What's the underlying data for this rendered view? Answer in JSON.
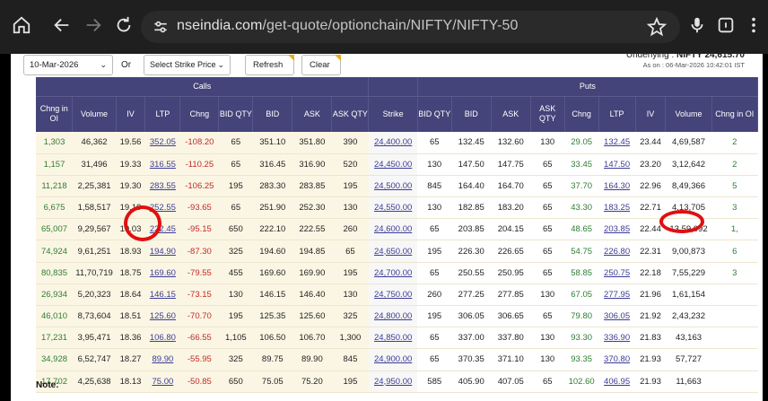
{
  "browser": {
    "url_host": "nseindia.com",
    "url_path": "/get-quote/optionchain/NIFTY/NIFTY-50"
  },
  "controls": {
    "expiry": "10-Mar-2026",
    "or_label": "Or",
    "strike_placeholder": "Select Strike Price",
    "refresh": "Refresh",
    "clear": "Clear"
  },
  "underlying": {
    "label": "Underlying : ",
    "value": "NIFTY 24,615.70",
    "as_on": "As on : 06-Mar-2026 10:42:01 IST"
  },
  "table": {
    "calls_label": "Calls",
    "puts_label": "Puts",
    "headers": [
      "Chng in OI",
      "Volume",
      "IV",
      "LTP",
      "Chng",
      "BID QTY",
      "BID",
      "ASK",
      "ASK QTY",
      "Strike",
      "BID QTY",
      "BID",
      "ASK",
      "ASK QTY",
      "Chng",
      "LTP",
      "IV",
      "Volume",
      "Chng in OI"
    ],
    "rows": [
      {
        "c_oi": "1,303",
        "c_vol": "46,362",
        "c_iv": "19.56",
        "c_ltp": "352.05",
        "c_chg": "-108.20",
        "c_bq": "65",
        "c_bid": "351.10",
        "c_ask": "351.80",
        "c_aq": "390",
        "strike": "24,400.00",
        "p_bq": "65",
        "p_bid": "132.45",
        "p_ask": "132.60",
        "p_aq": "130",
        "p_chg": "29.05",
        "p_ltp": "132.45",
        "p_iv": "23.44",
        "p_vol": "4,69,587",
        "p_oi": "2"
      },
      {
        "c_oi": "1,157",
        "c_vol": "31,496",
        "c_iv": "19.33",
        "c_ltp": "316.55",
        "c_chg": "-110.25",
        "c_bq": "65",
        "c_bid": "316.45",
        "c_ask": "316.90",
        "c_aq": "520",
        "strike": "24,450.00",
        "p_bq": "130",
        "p_bid": "147.50",
        "p_ask": "147.75",
        "p_aq": "65",
        "p_chg": "33.45",
        "p_ltp": "147.50",
        "p_iv": "23.20",
        "p_vol": "3,12,642",
        "p_oi": "2"
      },
      {
        "c_oi": "11,218",
        "c_vol": "2,25,381",
        "c_iv": "19.30",
        "c_ltp": "283.55",
        "c_chg": "-106.25",
        "c_bq": "195",
        "c_bid": "283.30",
        "c_ask": "283.85",
        "c_aq": "195",
        "strike": "24,500.00",
        "p_bq": "845",
        "p_bid": "164.40",
        "p_ask": "164.70",
        "p_aq": "65",
        "p_chg": "37.70",
        "p_ltp": "164.30",
        "p_iv": "22.96",
        "p_vol": "8,49,366",
        "p_oi": "5"
      },
      {
        "c_oi": "6,675",
        "c_vol": "1,58,517",
        "c_iv": "19.19",
        "c_ltp": "252.55",
        "c_chg": "-93.65",
        "c_bq": "65",
        "c_bid": "251.90",
        "c_ask": "252.30",
        "c_aq": "130",
        "strike": "24,550.00",
        "p_bq": "130",
        "p_bid": "182.85",
        "p_ask": "183.20",
        "p_aq": "65",
        "p_chg": "43.30",
        "p_ltp": "183.25",
        "p_iv": "22.71",
        "p_vol": "4,13,705",
        "p_oi": "3"
      },
      {
        "c_oi": "65,007",
        "c_vol": "9,29,567",
        "c_iv": "19.03",
        "c_ltp": "222.45",
        "c_chg": "-95.15",
        "c_bq": "650",
        "c_bid": "222.10",
        "c_ask": "222.55",
        "c_aq": "260",
        "strike": "24,600.00",
        "p_bq": "65",
        "p_bid": "203.85",
        "p_ask": "204.15",
        "p_aq": "65",
        "p_chg": "48.65",
        "p_ltp": "203.85",
        "p_iv": "22.44",
        "p_vol": "13,59,092",
        "p_oi": "1,"
      },
      {
        "c_oi": "74,924",
        "c_vol": "9,61,251",
        "c_iv": "18.93",
        "c_ltp": "194.90",
        "c_chg": "-87.30",
        "c_bq": "325",
        "c_bid": "194.60",
        "c_ask": "194.85",
        "c_aq": "65",
        "strike": "24,650.00",
        "p_bq": "195",
        "p_bid": "226.30",
        "p_ask": "226.65",
        "p_aq": "65",
        "p_chg": "54.75",
        "p_ltp": "226.80",
        "p_iv": "22.31",
        "p_vol": "9,00,873",
        "p_oi": "6"
      },
      {
        "c_oi": "80,835",
        "c_vol": "11,70,719",
        "c_iv": "18.75",
        "c_ltp": "169.60",
        "c_chg": "-79.55",
        "c_bq": "455",
        "c_bid": "169.60",
        "c_ask": "169.90",
        "c_aq": "195",
        "strike": "24,700.00",
        "p_bq": "65",
        "p_bid": "250.55",
        "p_ask": "250.95",
        "p_aq": "65",
        "p_chg": "58.85",
        "p_ltp": "250.75",
        "p_iv": "22.18",
        "p_vol": "7,55,229",
        "p_oi": "3"
      },
      {
        "c_oi": "26,934",
        "c_vol": "5,20,323",
        "c_iv": "18.64",
        "c_ltp": "146.15",
        "c_chg": "-73.15",
        "c_bq": "130",
        "c_bid": "146.15",
        "c_ask": "146.40",
        "c_aq": "130",
        "strike": "24,750.00",
        "p_bq": "260",
        "p_bid": "277.25",
        "p_ask": "277.85",
        "p_aq": "130",
        "p_chg": "67.05",
        "p_ltp": "277.95",
        "p_iv": "21.96",
        "p_vol": "1,61,154",
        "p_oi": ""
      },
      {
        "c_oi": "46,010",
        "c_vol": "8,73,604",
        "c_iv": "18.51",
        "c_ltp": "125.60",
        "c_chg": "-70.70",
        "c_bq": "195",
        "c_bid": "125.35",
        "c_ask": "125.60",
        "c_aq": "325",
        "strike": "24,800.00",
        "p_bq": "195",
        "p_bid": "306.05",
        "p_ask": "306.65",
        "p_aq": "65",
        "p_chg": "79.80",
        "p_ltp": "306.05",
        "p_iv": "21.92",
        "p_vol": "2,43,232",
        "p_oi": ""
      },
      {
        "c_oi": "17,231",
        "c_vol": "3,95,471",
        "c_iv": "18.36",
        "c_ltp": "106.80",
        "c_chg": "-66.55",
        "c_bq": "1,105",
        "c_bid": "106.50",
        "c_ask": "106.70",
        "c_aq": "1,300",
        "strike": "24,850.00",
        "p_bq": "65",
        "p_bid": "337.00",
        "p_ask": "337.80",
        "p_aq": "130",
        "p_chg": "93.30",
        "p_ltp": "336.90",
        "p_iv": "21.83",
        "p_vol": "43,163",
        "p_oi": ""
      },
      {
        "c_oi": "34,928",
        "c_vol": "6,52,747",
        "c_iv": "18.27",
        "c_ltp": "89.90",
        "c_chg": "-55.95",
        "c_bq": "325",
        "c_bid": "89.75",
        "c_ask": "89.90",
        "c_aq": "845",
        "strike": "24,900.00",
        "p_bq": "65",
        "p_bid": "370.35",
        "p_ask": "371.10",
        "p_aq": "130",
        "p_chg": "93.35",
        "p_ltp": "370.80",
        "p_iv": "21.93",
        "p_vol": "57,727",
        "p_oi": ""
      },
      {
        "c_oi": "17,702",
        "c_vol": "4,25,638",
        "c_iv": "18.13",
        "c_ltp": "75.00",
        "c_chg": "-50.85",
        "c_bq": "650",
        "c_bid": "75.05",
        "c_ask": "75.20",
        "c_aq": "195",
        "strike": "24,950.00",
        "p_bq": "585",
        "p_bid": "405.90",
        "p_ask": "407.05",
        "p_aq": "65",
        "p_chg": "102.60",
        "p_ltp": "406.95",
        "p_iv": "21.93",
        "p_vol": "11,663",
        "p_oi": ""
      }
    ]
  },
  "note": "Note:",
  "colors": {
    "header": "#44447a",
    "itm": "#fbf6e4",
    "positive": "#2e7d32",
    "negative": "#c62828",
    "highlight_ring": "#e01010"
  }
}
